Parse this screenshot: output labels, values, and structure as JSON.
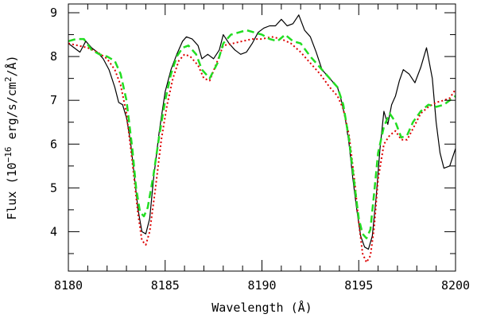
{
  "chart_data": {
    "type": "line",
    "xlabel": "Wavelength (Å)",
    "ylabel_parts": [
      "Flux (10",
      "−16",
      " erg/s/cm",
      "2",
      "/Å)"
    ],
    "xlim": [
      8180,
      8200
    ],
    "ylim": [
      3.1,
      9.2
    ],
    "x_ticks": [
      8180,
      8185,
      8190,
      8195,
      8200
    ],
    "y_ticks": [
      4,
      5,
      6,
      7,
      8,
      9
    ],
    "x_minor_step": 1,
    "y_minor_step": 0.5,
    "series": [
      {
        "color": "#000000",
        "dash": "none",
        "width": 1.2,
        "points": [
          [
            8180.0,
            8.3
          ],
          [
            8180.3,
            8.2
          ],
          [
            8180.6,
            8.1
          ],
          [
            8180.9,
            8.35
          ],
          [
            8181.2,
            8.2
          ],
          [
            8181.5,
            8.1
          ],
          [
            8181.8,
            7.95
          ],
          [
            8182.1,
            7.7
          ],
          [
            8182.4,
            7.3
          ],
          [
            8182.6,
            6.95
          ],
          [
            8182.8,
            6.9
          ],
          [
            8183.0,
            6.6
          ],
          [
            8183.2,
            6.1
          ],
          [
            8183.4,
            5.3
          ],
          [
            8183.6,
            4.5
          ],
          [
            8183.8,
            4.0
          ],
          [
            8184.0,
            3.95
          ],
          [
            8184.2,
            4.3
          ],
          [
            8184.4,
            5.2
          ],
          [
            8184.7,
            6.3
          ],
          [
            8185.0,
            7.2
          ],
          [
            8185.3,
            7.7
          ],
          [
            8185.6,
            8.05
          ],
          [
            8185.9,
            8.35
          ],
          [
            8186.1,
            8.45
          ],
          [
            8186.4,
            8.4
          ],
          [
            8186.7,
            8.25
          ],
          [
            8186.9,
            7.95
          ],
          [
            8187.2,
            8.05
          ],
          [
            8187.5,
            7.95
          ],
          [
            8187.8,
            8.15
          ],
          [
            8188.0,
            8.5
          ],
          [
            8188.3,
            8.3
          ],
          [
            8188.6,
            8.15
          ],
          [
            8188.9,
            8.05
          ],
          [
            8189.2,
            8.1
          ],
          [
            8189.5,
            8.3
          ],
          [
            8189.8,
            8.55
          ],
          [
            8190.1,
            8.65
          ],
          [
            8190.4,
            8.7
          ],
          [
            8190.7,
            8.7
          ],
          [
            8191.0,
            8.85
          ],
          [
            8191.3,
            8.7
          ],
          [
            8191.6,
            8.75
          ],
          [
            8191.9,
            8.95
          ],
          [
            8192.2,
            8.6
          ],
          [
            8192.5,
            8.45
          ],
          [
            8192.8,
            8.1
          ],
          [
            8193.1,
            7.7
          ],
          [
            8193.4,
            7.55
          ],
          [
            8193.7,
            7.4
          ],
          [
            8193.9,
            7.3
          ],
          [
            8194.1,
            7.0
          ],
          [
            8194.3,
            6.6
          ],
          [
            8194.5,
            6.0
          ],
          [
            8194.7,
            5.2
          ],
          [
            8194.9,
            4.5
          ],
          [
            8195.1,
            3.9
          ],
          [
            8195.3,
            3.65
          ],
          [
            8195.5,
            3.6
          ],
          [
            8195.7,
            3.9
          ],
          [
            8195.9,
            4.8
          ],
          [
            8196.1,
            5.9
          ],
          [
            8196.3,
            6.75
          ],
          [
            8196.5,
            6.45
          ],
          [
            8196.7,
            6.9
          ],
          [
            8196.9,
            7.1
          ],
          [
            8197.1,
            7.45
          ],
          [
            8197.3,
            7.7
          ],
          [
            8197.6,
            7.6
          ],
          [
            8197.9,
            7.4
          ],
          [
            8198.2,
            7.75
          ],
          [
            8198.5,
            8.2
          ],
          [
            8198.8,
            7.5
          ],
          [
            8199.0,
            6.5
          ],
          [
            8199.2,
            5.8
          ],
          [
            8199.4,
            5.45
          ],
          [
            8199.7,
            5.5
          ],
          [
            8200.0,
            5.9
          ]
        ]
      },
      {
        "color": "#dd0000",
        "dash": "2,3",
        "width": 2,
        "points": [
          [
            8180.0,
            8.3
          ],
          [
            8180.5,
            8.25
          ],
          [
            8181.0,
            8.2
          ],
          [
            8181.5,
            8.1
          ],
          [
            8182.0,
            7.95
          ],
          [
            8182.4,
            7.7
          ],
          [
            8182.7,
            7.35
          ],
          [
            8183.0,
            6.7
          ],
          [
            8183.3,
            5.6
          ],
          [
            8183.6,
            4.4
          ],
          [
            8183.8,
            3.8
          ],
          [
            8184.0,
            3.7
          ],
          [
            8184.2,
            4.0
          ],
          [
            8184.5,
            5.0
          ],
          [
            8184.8,
            6.1
          ],
          [
            8185.1,
            6.9
          ],
          [
            8185.4,
            7.5
          ],
          [
            8185.7,
            7.9
          ],
          [
            8186.0,
            8.05
          ],
          [
            8186.3,
            8.0
          ],
          [
            8186.7,
            7.8
          ],
          [
            8187.0,
            7.5
          ],
          [
            8187.3,
            7.45
          ],
          [
            8187.7,
            7.9
          ],
          [
            8188.0,
            8.25
          ],
          [
            8188.5,
            8.3
          ],
          [
            8189.0,
            8.35
          ],
          [
            8189.5,
            8.4
          ],
          [
            8190.0,
            8.4
          ],
          [
            8190.5,
            8.45
          ],
          [
            8191.0,
            8.4
          ],
          [
            8191.5,
            8.3
          ],
          [
            8192.0,
            8.1
          ],
          [
            8192.5,
            7.85
          ],
          [
            8193.0,
            7.6
          ],
          [
            8193.5,
            7.3
          ],
          [
            8193.9,
            7.1
          ],
          [
            8194.2,
            6.8
          ],
          [
            8194.5,
            6.2
          ],
          [
            8194.8,
            5.1
          ],
          [
            8195.0,
            4.2
          ],
          [
            8195.2,
            3.5
          ],
          [
            8195.4,
            3.3
          ],
          [
            8195.6,
            3.45
          ],
          [
            8195.8,
            4.1
          ],
          [
            8196.0,
            5.2
          ],
          [
            8196.3,
            6.0
          ],
          [
            8196.6,
            6.2
          ],
          [
            8196.9,
            6.3
          ],
          [
            8197.2,
            6.1
          ],
          [
            8197.5,
            6.1
          ],
          [
            8197.8,
            6.35
          ],
          [
            8198.2,
            6.7
          ],
          [
            8198.6,
            6.85
          ],
          [
            8199.0,
            6.95
          ],
          [
            8199.4,
            7.0
          ],
          [
            8199.7,
            7.05
          ],
          [
            8200.0,
            7.25
          ]
        ]
      },
      {
        "color": "#22dd22",
        "dash": "9,5",
        "width": 2.5,
        "points": [
          [
            8180.0,
            8.35
          ],
          [
            8180.4,
            8.4
          ],
          [
            8180.8,
            8.4
          ],
          [
            8181.2,
            8.15
          ],
          [
            8181.6,
            8.05
          ],
          [
            8182.0,
            8.0
          ],
          [
            8182.4,
            7.9
          ],
          [
            8182.7,
            7.6
          ],
          [
            8183.0,
            7.0
          ],
          [
            8183.3,
            5.9
          ],
          [
            8183.5,
            5.0
          ],
          [
            8183.7,
            4.45
          ],
          [
            8183.9,
            4.35
          ],
          [
            8184.1,
            4.55
          ],
          [
            8184.4,
            5.3
          ],
          [
            8184.7,
            6.2
          ],
          [
            8185.0,
            7.0
          ],
          [
            8185.3,
            7.6
          ],
          [
            8185.6,
            8.0
          ],
          [
            8185.9,
            8.2
          ],
          [
            8186.2,
            8.25
          ],
          [
            8186.6,
            8.05
          ],
          [
            8186.9,
            7.7
          ],
          [
            8187.3,
            7.5
          ],
          [
            8187.7,
            7.85
          ],
          [
            8188.0,
            8.3
          ],
          [
            8188.4,
            8.5
          ],
          [
            8188.8,
            8.55
          ],
          [
            8189.2,
            8.6
          ],
          [
            8189.6,
            8.55
          ],
          [
            8190.0,
            8.5
          ],
          [
            8190.4,
            8.4
          ],
          [
            8190.8,
            8.35
          ],
          [
            8191.2,
            8.5
          ],
          [
            8191.6,
            8.35
          ],
          [
            8192.0,
            8.3
          ],
          [
            8192.5,
            8.0
          ],
          [
            8193.0,
            7.75
          ],
          [
            8193.5,
            7.5
          ],
          [
            8193.9,
            7.3
          ],
          [
            8194.2,
            6.9
          ],
          [
            8194.5,
            6.1
          ],
          [
            8194.8,
            5.0
          ],
          [
            8195.0,
            4.3
          ],
          [
            8195.2,
            3.95
          ],
          [
            8195.4,
            3.85
          ],
          [
            8195.6,
            4.05
          ],
          [
            8195.8,
            4.9
          ],
          [
            8196.0,
            5.8
          ],
          [
            8196.3,
            6.4
          ],
          [
            8196.6,
            6.7
          ],
          [
            8196.9,
            6.5
          ],
          [
            8197.2,
            6.15
          ],
          [
            8197.5,
            6.2
          ],
          [
            8197.8,
            6.5
          ],
          [
            8198.2,
            6.75
          ],
          [
            8198.6,
            6.9
          ],
          [
            8199.0,
            6.85
          ],
          [
            8199.4,
            6.9
          ],
          [
            8199.7,
            7.0
          ],
          [
            8200.0,
            7.1
          ]
        ]
      }
    ]
  }
}
